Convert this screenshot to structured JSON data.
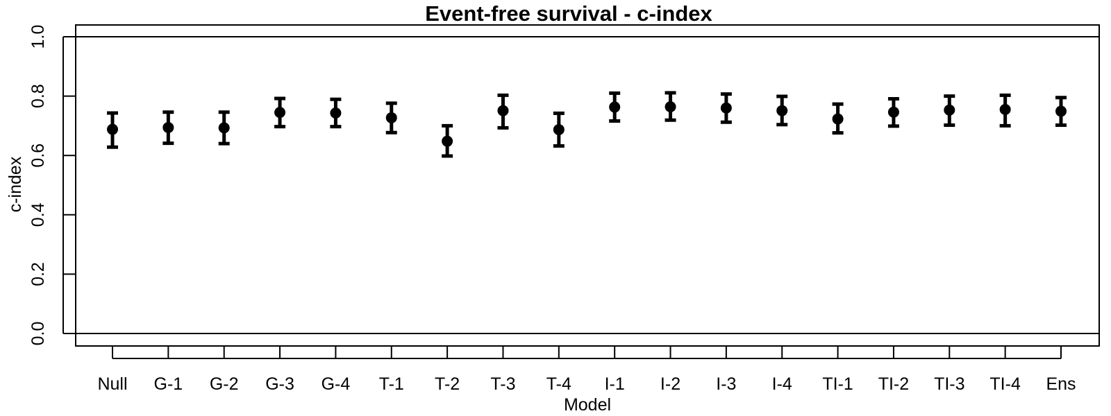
{
  "chart_data": {
    "type": "scatter",
    "title": "Event-free survival - c-index",
    "xlabel": "Model",
    "ylabel": "c-index",
    "ylim": [
      0.0,
      1.0
    ],
    "yticks": [
      "0.0",
      "0.2",
      "0.4",
      "0.6",
      "0.8",
      "1.0"
    ],
    "reference_lines": [
      0.0,
      1.0
    ],
    "grid": false,
    "categories": [
      "Null",
      "G-1",
      "G-2",
      "G-3",
      "G-4",
      "T-1",
      "T-2",
      "T-3",
      "T-4",
      "I-1",
      "I-2",
      "I-3",
      "I-4",
      "TI-1",
      "TI-2",
      "TI-3",
      "TI-4",
      "Ens"
    ],
    "series": [
      {
        "values": [
          0.688,
          0.694,
          0.693,
          0.745,
          0.743,
          0.727,
          0.648,
          0.751,
          0.687,
          0.763,
          0.764,
          0.76,
          0.751,
          0.723,
          0.746,
          0.753,
          0.755,
          0.749
        ],
        "lower": [
          0.628,
          0.641,
          0.64,
          0.697,
          0.697,
          0.677,
          0.598,
          0.693,
          0.632,
          0.716,
          0.719,
          0.712,
          0.704,
          0.676,
          0.699,
          0.702,
          0.7,
          0.702
        ],
        "upper": [
          0.743,
          0.746,
          0.746,
          0.792,
          0.789,
          0.776,
          0.7,
          0.803,
          0.742,
          0.81,
          0.811,
          0.807,
          0.799,
          0.773,
          0.791,
          0.8,
          0.803,
          0.795
        ]
      }
    ]
  }
}
